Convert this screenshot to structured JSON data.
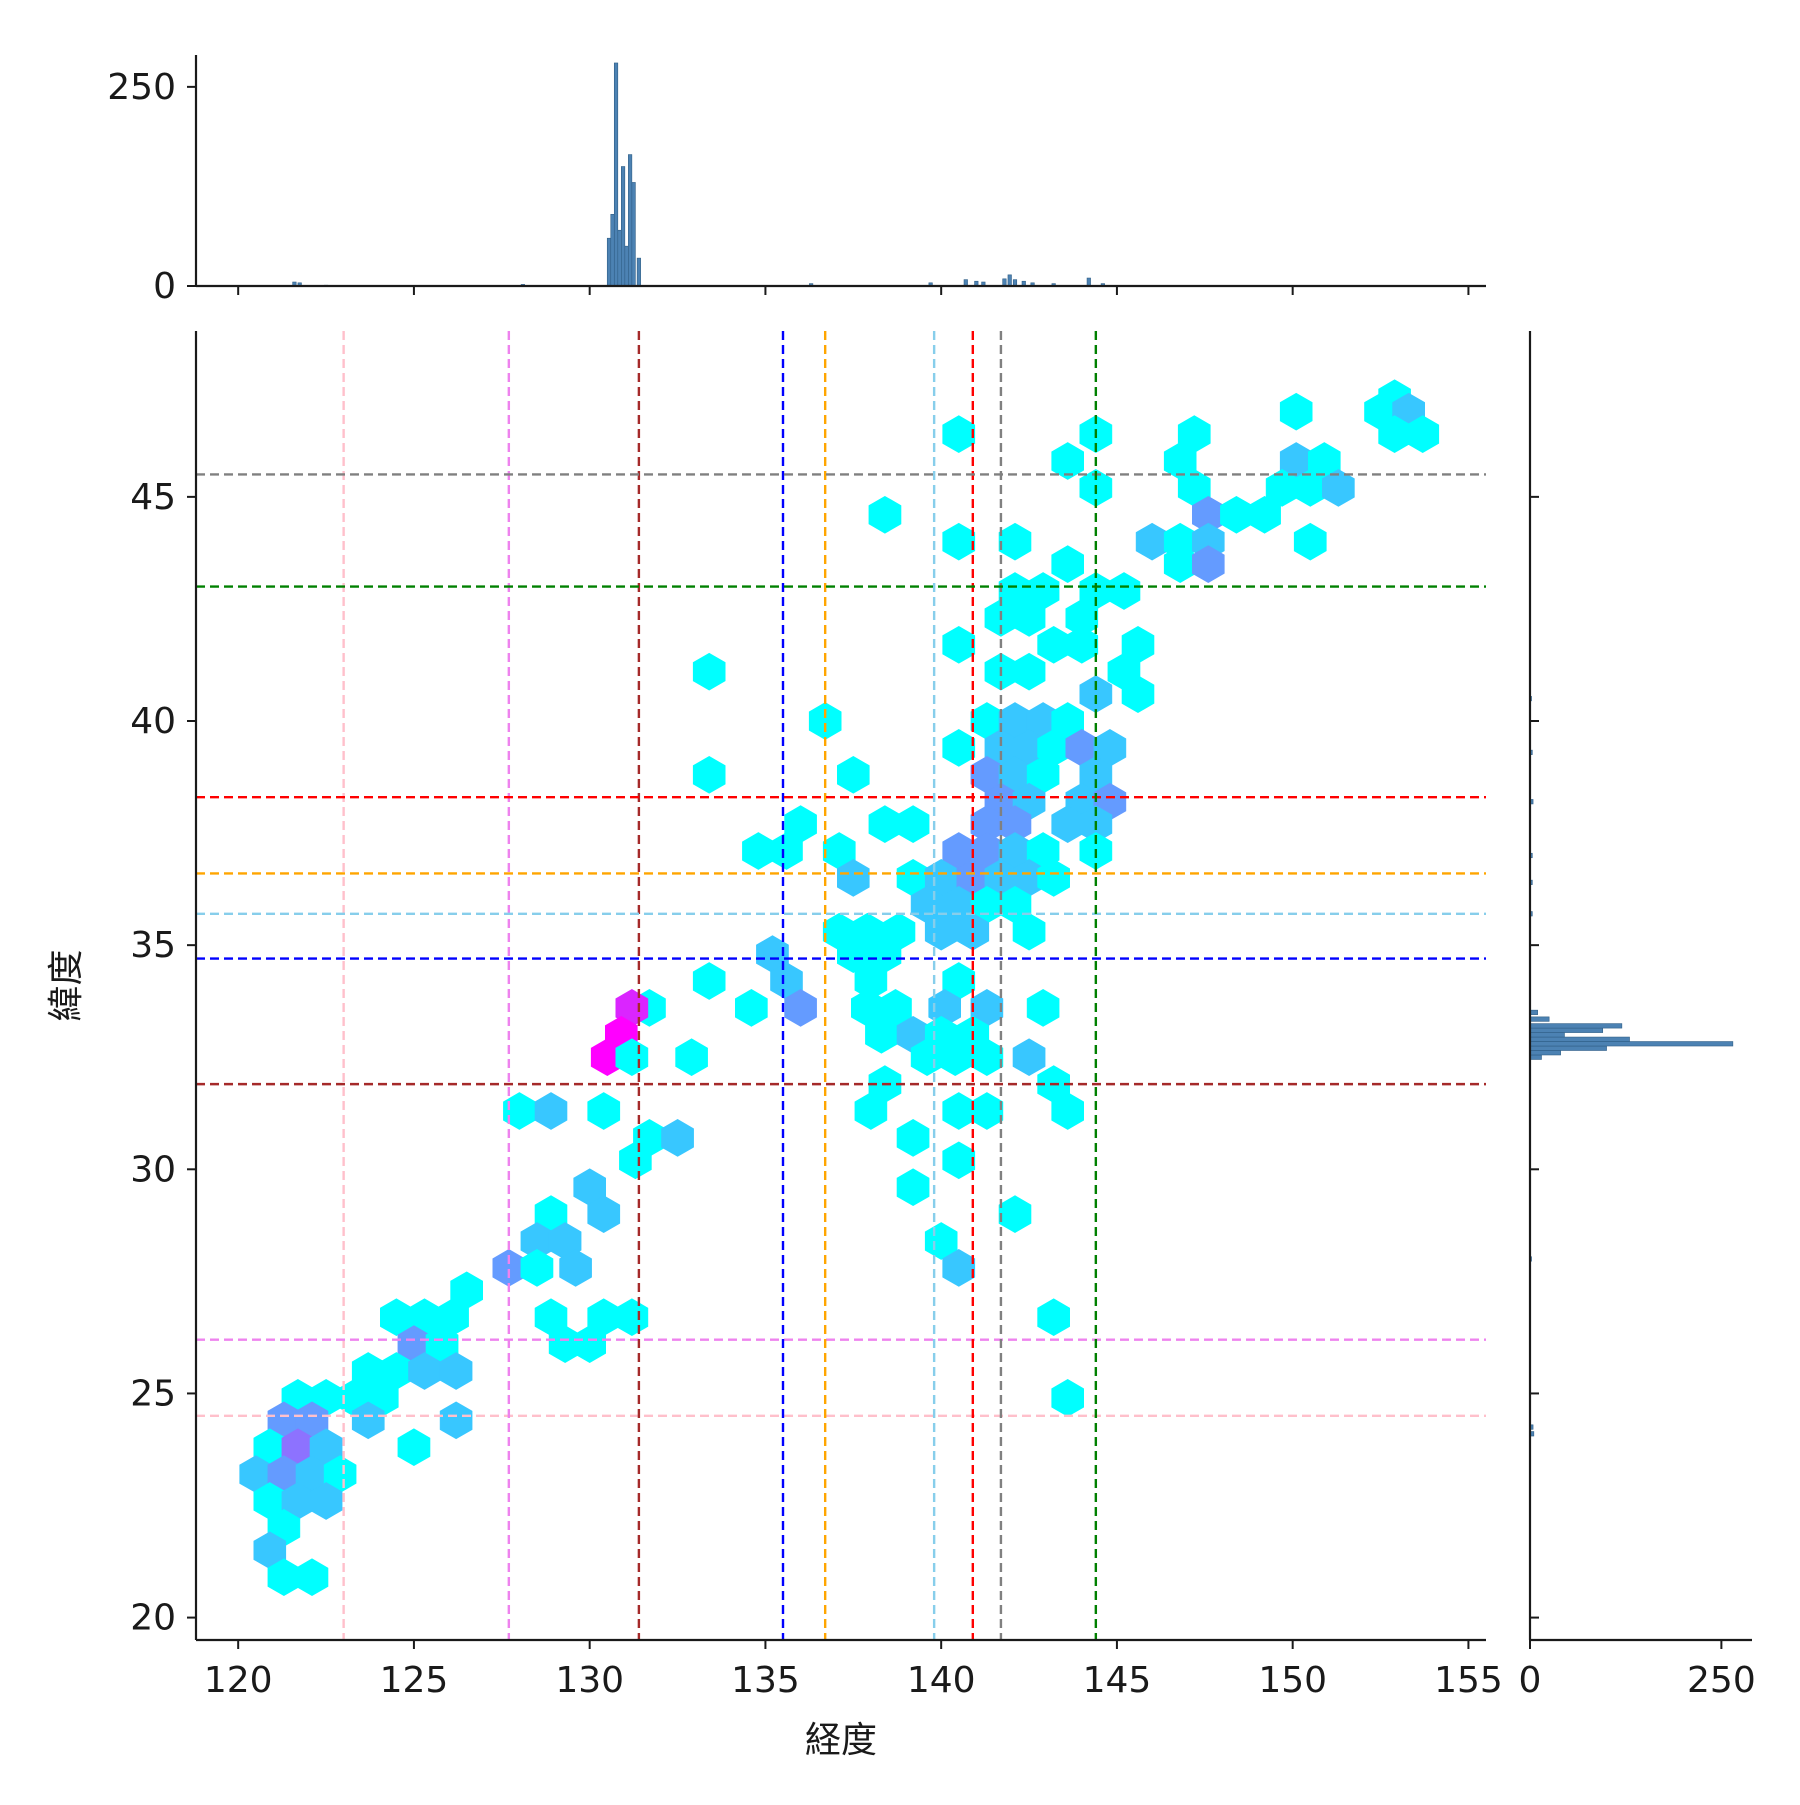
{
  "chart_data": {
    "type": "hexbin",
    "xlabel": "経度",
    "ylabel": "緯度",
    "xlim": [
      118.8,
      155.5
    ],
    "ylim": [
      19.5,
      48.7
    ],
    "x_ticks": [
      120,
      125,
      130,
      135,
      140,
      145,
      150,
      155
    ],
    "y_ticks": [
      20,
      25,
      30,
      35,
      40,
      45
    ],
    "marginal_x": {
      "type": "histogram",
      "yticks": [
        0,
        250
      ],
      "ymax": 290,
      "bars": [
        {
          "x": 121.6,
          "count": 5
        },
        {
          "x": 121.75,
          "count": 4
        },
        {
          "x": 122.5,
          "count": 1
        },
        {
          "x": 128.1,
          "count": 2
        },
        {
          "x": 130.55,
          "count": 60
        },
        {
          "x": 130.65,
          "count": 90
        },
        {
          "x": 130.75,
          "count": 280
        },
        {
          "x": 130.85,
          "count": 70
        },
        {
          "x": 130.95,
          "count": 150
        },
        {
          "x": 131.05,
          "count": 50
        },
        {
          "x": 131.15,
          "count": 165
        },
        {
          "x": 131.25,
          "count": 130
        },
        {
          "x": 131.4,
          "count": 35
        },
        {
          "x": 136.3,
          "count": 3
        },
        {
          "x": 139.7,
          "count": 4
        },
        {
          "x": 140.7,
          "count": 8
        },
        {
          "x": 141.0,
          "count": 6
        },
        {
          "x": 141.2,
          "count": 5
        },
        {
          "x": 141.8,
          "count": 9
        },
        {
          "x": 141.95,
          "count": 14
        },
        {
          "x": 142.1,
          "count": 8
        },
        {
          "x": 142.35,
          "count": 6
        },
        {
          "x": 142.6,
          "count": 4
        },
        {
          "x": 143.2,
          "count": 3
        },
        {
          "x": 144.2,
          "count": 10
        },
        {
          "x": 144.6,
          "count": 3
        }
      ]
    },
    "marginal_y": {
      "type": "histogram",
      "xticks": [
        0,
        250
      ],
      "xmax": 290,
      "bars": [
        {
          "y": 24.1,
          "count": 5
        },
        {
          "y": 24.25,
          "count": 4
        },
        {
          "y": 28.0,
          "count": 2
        },
        {
          "y": 32.5,
          "count": 15
        },
        {
          "y": 32.6,
          "count": 40
        },
        {
          "y": 32.7,
          "count": 100
        },
        {
          "y": 32.8,
          "count": 265
        },
        {
          "y": 32.9,
          "count": 130
        },
        {
          "y": 33.0,
          "count": 45
        },
        {
          "y": 33.1,
          "count": 95
        },
        {
          "y": 33.2,
          "count": 120
        },
        {
          "y": 33.35,
          "count": 25
        },
        {
          "y": 33.5,
          "count": 10
        },
        {
          "y": 35.7,
          "count": 3
        },
        {
          "y": 36.4,
          "count": 3
        },
        {
          "y": 37.0,
          "count": 3
        },
        {
          "y": 38.2,
          "count": 4
        },
        {
          "y": 39.3,
          "count": 3
        },
        {
          "y": 40.5,
          "count": 2
        }
      ]
    },
    "reference_lines": [
      {
        "color": "pink",
        "x": 123.0,
        "y": 24.5
      },
      {
        "color": "violet",
        "x": 127.7,
        "y": 26.2
      },
      {
        "color": "brown",
        "x": 131.4,
        "y": 31.9
      },
      {
        "color": "blue",
        "x": 135.5,
        "y": 34.7
      },
      {
        "color": "orange",
        "x": 136.7,
        "y": 36.6
      },
      {
        "color": "skyblue",
        "x": 139.8,
        "y": 35.7
      },
      {
        "color": "red",
        "x": 140.9,
        "y": 38.3
      },
      {
        "color": "grey",
        "x": 141.7,
        "y": 45.5
      },
      {
        "color": "green",
        "x": 144.4,
        "y": 43.0
      }
    ],
    "hexbins": [
      {
        "x": 152.9,
        "y": 47.2,
        "c": 1
      },
      {
        "x": 152.5,
        "y": 46.9,
        "c": 1
      },
      {
        "x": 153.3,
        "y": 46.9,
        "c": 2
      },
      {
        "x": 153.7,
        "y": 46.4,
        "c": 1
      },
      {
        "x": 152.9,
        "y": 46.4,
        "c": 1
      },
      {
        "x": 150.1,
        "y": 46.9,
        "c": 1
      },
      {
        "x": 140.5,
        "y": 46.4,
        "c": 1
      },
      {
        "x": 144.4,
        "y": 46.4,
        "c": 1
      },
      {
        "x": 147.2,
        "y": 46.4,
        "c": 1
      },
      {
        "x": 143.6,
        "y": 45.8,
        "c": 1
      },
      {
        "x": 146.8,
        "y": 45.8,
        "c": 1
      },
      {
        "x": 150.1,
        "y": 45.8,
        "c": 2
      },
      {
        "x": 150.9,
        "y": 45.8,
        "c": 1
      },
      {
        "x": 144.4,
        "y": 45.2,
        "c": 1
      },
      {
        "x": 147.2,
        "y": 45.2,
        "c": 1
      },
      {
        "x": 149.7,
        "y": 45.2,
        "c": 1
      },
      {
        "x": 150.5,
        "y": 45.2,
        "c": 1
      },
      {
        "x": 151.3,
        "y": 45.2,
        "c": 2
      },
      {
        "x": 138.4,
        "y": 44.6,
        "c": 1
      },
      {
        "x": 147.6,
        "y": 44.6,
        "c": 3
      },
      {
        "x": 148.4,
        "y": 44.6,
        "c": 1
      },
      {
        "x": 149.2,
        "y": 44.6,
        "c": 1
      },
      {
        "x": 140.5,
        "y": 44.0,
        "c": 1
      },
      {
        "x": 142.1,
        "y": 44.0,
        "c": 1
      },
      {
        "x": 146.0,
        "y": 44.0,
        "c": 2
      },
      {
        "x": 146.8,
        "y": 44.0,
        "c": 1
      },
      {
        "x": 147.6,
        "y": 44.0,
        "c": 2
      },
      {
        "x": 150.5,
        "y": 44.0,
        "c": 1
      },
      {
        "x": 143.6,
        "y": 43.5,
        "c": 1
      },
      {
        "x": 146.8,
        "y": 43.5,
        "c": 1
      },
      {
        "x": 147.6,
        "y": 43.5,
        "c": 3
      },
      {
        "x": 142.1,
        "y": 42.9,
        "c": 1
      },
      {
        "x": 142.9,
        "y": 42.9,
        "c": 1
      },
      {
        "x": 144.4,
        "y": 42.9,
        "c": 1
      },
      {
        "x": 145.2,
        "y": 42.9,
        "c": 1
      },
      {
        "x": 142.5,
        "y": 42.3,
        "c": 1
      },
      {
        "x": 144.0,
        "y": 42.3,
        "c": 1
      },
      {
        "x": 141.7,
        "y": 42.3,
        "c": 1
      },
      {
        "x": 140.5,
        "y": 41.7,
        "c": 1
      },
      {
        "x": 143.2,
        "y": 41.7,
        "c": 1
      },
      {
        "x": 144.0,
        "y": 41.7,
        "c": 1
      },
      {
        "x": 145.6,
        "y": 41.7,
        "c": 1
      },
      {
        "x": 133.4,
        "y": 41.1,
        "c": 1
      },
      {
        "x": 141.7,
        "y": 41.1,
        "c": 1
      },
      {
        "x": 142.5,
        "y": 41.1,
        "c": 1
      },
      {
        "x": 145.2,
        "y": 41.1,
        "c": 1
      },
      {
        "x": 144.4,
        "y": 40.6,
        "c": 2
      },
      {
        "x": 145.6,
        "y": 40.6,
        "c": 1
      },
      {
        "x": 136.7,
        "y": 40.0,
        "c": 1
      },
      {
        "x": 141.3,
        "y": 40.0,
        "c": 1
      },
      {
        "x": 142.1,
        "y": 40.0,
        "c": 2
      },
      {
        "x": 142.9,
        "y": 40.0,
        "c": 2
      },
      {
        "x": 143.6,
        "y": 40.0,
        "c": 1
      },
      {
        "x": 140.5,
        "y": 39.4,
        "c": 1
      },
      {
        "x": 141.7,
        "y": 39.4,
        "c": 2
      },
      {
        "x": 142.5,
        "y": 39.4,
        "c": 2
      },
      {
        "x": 143.2,
        "y": 39.4,
        "c": 1
      },
      {
        "x": 144.0,
        "y": 39.4,
        "c": 3
      },
      {
        "x": 144.8,
        "y": 39.4,
        "c": 2
      },
      {
        "x": 133.4,
        "y": 38.8,
        "c": 1
      },
      {
        "x": 137.5,
        "y": 38.8,
        "c": 1
      },
      {
        "x": 141.3,
        "y": 38.8,
        "c": 3
      },
      {
        "x": 142.1,
        "y": 38.8,
        "c": 2
      },
      {
        "x": 142.9,
        "y": 38.8,
        "c": 1
      },
      {
        "x": 144.4,
        "y": 38.8,
        "c": 2
      },
      {
        "x": 141.7,
        "y": 38.2,
        "c": 3
      },
      {
        "x": 142.5,
        "y": 38.2,
        "c": 2
      },
      {
        "x": 144.0,
        "y": 38.2,
        "c": 2
      },
      {
        "x": 144.8,
        "y": 38.2,
        "c": 3
      },
      {
        "x": 136.0,
        "y": 37.7,
        "c": 1
      },
      {
        "x": 138.4,
        "y": 37.7,
        "c": 1
      },
      {
        "x": 139.2,
        "y": 37.7,
        "c": 1
      },
      {
        "x": 141.3,
        "y": 37.7,
        "c": 3
      },
      {
        "x": 142.1,
        "y": 37.7,
        "c": 3
      },
      {
        "x": 143.6,
        "y": 37.7,
        "c": 2
      },
      {
        "x": 144.4,
        "y": 37.7,
        "c": 2
      },
      {
        "x": 134.8,
        "y": 37.1,
        "c": 1
      },
      {
        "x": 135.6,
        "y": 37.1,
        "c": 1
      },
      {
        "x": 137.1,
        "y": 37.1,
        "c": 1
      },
      {
        "x": 140.5,
        "y": 37.1,
        "c": 3
      },
      {
        "x": 141.3,
        "y": 37.1,
        "c": 3
      },
      {
        "x": 142.1,
        "y": 37.1,
        "c": 2
      },
      {
        "x": 142.9,
        "y": 37.1,
        "c": 1
      },
      {
        "x": 144.4,
        "y": 37.1,
        "c": 1
      },
      {
        "x": 137.5,
        "y": 36.5,
        "c": 2
      },
      {
        "x": 139.2,
        "y": 36.5,
        "c": 1
      },
      {
        "x": 140.0,
        "y": 36.5,
        "c": 2
      },
      {
        "x": 140.9,
        "y": 36.5,
        "c": 3
      },
      {
        "x": 141.7,
        "y": 36.5,
        "c": 2
      },
      {
        "x": 142.5,
        "y": 36.5,
        "c": 2
      },
      {
        "x": 143.2,
        "y": 36.5,
        "c": 1
      },
      {
        "x": 139.6,
        "y": 35.9,
        "c": 2
      },
      {
        "x": 140.5,
        "y": 35.9,
        "c": 2
      },
      {
        "x": 141.3,
        "y": 35.9,
        "c": 1
      },
      {
        "x": 142.1,
        "y": 35.9,
        "c": 1
      },
      {
        "x": 137.1,
        "y": 35.3,
        "c": 1
      },
      {
        "x": 137.9,
        "y": 35.3,
        "c": 1
      },
      {
        "x": 138.8,
        "y": 35.3,
        "c": 1
      },
      {
        "x": 140.0,
        "y": 35.3,
        "c": 2
      },
      {
        "x": 140.9,
        "y": 35.3,
        "c": 2
      },
      {
        "x": 142.5,
        "y": 35.3,
        "c": 1
      },
      {
        "x": 135.2,
        "y": 34.8,
        "c": 2
      },
      {
        "x": 137.5,
        "y": 34.8,
        "c": 1
      },
      {
        "x": 138.4,
        "y": 34.8,
        "c": 1
      },
      {
        "x": 133.4,
        "y": 34.2,
        "c": 1
      },
      {
        "x": 135.6,
        "y": 34.2,
        "c": 2
      },
      {
        "x": 138.0,
        "y": 34.2,
        "c": 1
      },
      {
        "x": 140.5,
        "y": 34.2,
        "c": 1
      },
      {
        "x": 131.7,
        "y": 33.6,
        "c": 1
      },
      {
        "x": 131.2,
        "y": 33.6,
        "c": 6
      },
      {
        "x": 134.6,
        "y": 33.6,
        "c": 1
      },
      {
        "x": 136.0,
        "y": 33.6,
        "c": 3
      },
      {
        "x": 137.9,
        "y": 33.6,
        "c": 1
      },
      {
        "x": 138.7,
        "y": 33.6,
        "c": 1
      },
      {
        "x": 140.1,
        "y": 33.6,
        "c": 2
      },
      {
        "x": 141.3,
        "y": 33.6,
        "c": 2
      },
      {
        "x": 142.9,
        "y": 33.6,
        "c": 1
      },
      {
        "x": 130.9,
        "y": 33.0,
        "c": 7
      },
      {
        "x": 138.3,
        "y": 33.0,
        "c": 1
      },
      {
        "x": 139.2,
        "y": 33.0,
        "c": 2
      },
      {
        "x": 140.0,
        "y": 33.0,
        "c": 1
      },
      {
        "x": 140.9,
        "y": 33.0,
        "c": 1
      },
      {
        "x": 130.5,
        "y": 32.5,
        "c": 7
      },
      {
        "x": 131.2,
        "y": 32.5,
        "c": 1
      },
      {
        "x": 132.9,
        "y": 32.5,
        "c": 1
      },
      {
        "x": 139.6,
        "y": 32.5,
        "c": 1
      },
      {
        "x": 140.4,
        "y": 32.5,
        "c": 1
      },
      {
        "x": 141.3,
        "y": 32.5,
        "c": 1
      },
      {
        "x": 142.5,
        "y": 32.5,
        "c": 2
      },
      {
        "x": 138.4,
        "y": 31.9,
        "c": 1
      },
      {
        "x": 143.2,
        "y": 31.9,
        "c": 1
      },
      {
        "x": 128.0,
        "y": 31.3,
        "c": 1
      },
      {
        "x": 128.9,
        "y": 31.3,
        "c": 2
      },
      {
        "x": 130.4,
        "y": 31.3,
        "c": 1
      },
      {
        "x": 138.0,
        "y": 31.3,
        "c": 1
      },
      {
        "x": 140.5,
        "y": 31.3,
        "c": 1
      },
      {
        "x": 141.3,
        "y": 31.3,
        "c": 1
      },
      {
        "x": 143.6,
        "y": 31.3,
        "c": 1
      },
      {
        "x": 131.7,
        "y": 30.7,
        "c": 1
      },
      {
        "x": 132.5,
        "y": 30.7,
        "c": 2
      },
      {
        "x": 139.2,
        "y": 30.7,
        "c": 1
      },
      {
        "x": 131.3,
        "y": 30.2,
        "c": 1
      },
      {
        "x": 140.5,
        "y": 30.2,
        "c": 1
      },
      {
        "x": 130.0,
        "y": 29.6,
        "c": 2
      },
      {
        "x": 139.2,
        "y": 29.6,
        "c": 1
      },
      {
        "x": 128.9,
        "y": 29.0,
        "c": 1
      },
      {
        "x": 130.4,
        "y": 29.0,
        "c": 2
      },
      {
        "x": 142.1,
        "y": 29.0,
        "c": 1
      },
      {
        "x": 128.5,
        "y": 28.4,
        "c": 2
      },
      {
        "x": 129.3,
        "y": 28.4,
        "c": 2
      },
      {
        "x": 140.0,
        "y": 28.4,
        "c": 1
      },
      {
        "x": 127.7,
        "y": 27.8,
        "c": 3
      },
      {
        "x": 128.5,
        "y": 27.8,
        "c": 1
      },
      {
        "x": 129.6,
        "y": 27.8,
        "c": 2
      },
      {
        "x": 140.5,
        "y": 27.8,
        "c": 2
      },
      {
        "x": 126.5,
        "y": 27.3,
        "c": 1
      },
      {
        "x": 124.5,
        "y": 26.7,
        "c": 1
      },
      {
        "x": 125.3,
        "y": 26.7,
        "c": 1
      },
      {
        "x": 126.1,
        "y": 26.7,
        "c": 1
      },
      {
        "x": 128.9,
        "y": 26.7,
        "c": 1
      },
      {
        "x": 130.4,
        "y": 26.7,
        "c": 1
      },
      {
        "x": 131.2,
        "y": 26.7,
        "c": 1
      },
      {
        "x": 143.2,
        "y": 26.7,
        "c": 1
      },
      {
        "x": 125.0,
        "y": 26.1,
        "c": 3
      },
      {
        "x": 125.8,
        "y": 26.1,
        "c": 1
      },
      {
        "x": 129.3,
        "y": 26.1,
        "c": 1
      },
      {
        "x": 130.0,
        "y": 26.1,
        "c": 1
      },
      {
        "x": 123.7,
        "y": 25.5,
        "c": 1
      },
      {
        "x": 124.5,
        "y": 25.5,
        "c": 1
      },
      {
        "x": 125.3,
        "y": 25.5,
        "c": 2
      },
      {
        "x": 126.2,
        "y": 25.5,
        "c": 2
      },
      {
        "x": 121.7,
        "y": 24.9,
        "c": 1
      },
      {
        "x": 122.5,
        "y": 24.9,
        "c": 1
      },
      {
        "x": 123.3,
        "y": 24.9,
        "c": 1
      },
      {
        "x": 124.1,
        "y": 24.9,
        "c": 1
      },
      {
        "x": 143.6,
        "y": 24.9,
        "c": 1
      },
      {
        "x": 121.3,
        "y": 24.4,
        "c": 3
      },
      {
        "x": 122.1,
        "y": 24.4,
        "c": 3
      },
      {
        "x": 123.7,
        "y": 24.4,
        "c": 2
      },
      {
        "x": 126.2,
        "y": 24.4,
        "c": 2
      },
      {
        "x": 120.9,
        "y": 23.8,
        "c": 1
      },
      {
        "x": 121.7,
        "y": 23.8,
        "c": 4
      },
      {
        "x": 122.5,
        "y": 23.8,
        "c": 2
      },
      {
        "x": 125.0,
        "y": 23.8,
        "c": 1
      },
      {
        "x": 120.5,
        "y": 23.2,
        "c": 2
      },
      {
        "x": 121.3,
        "y": 23.2,
        "c": 3
      },
      {
        "x": 122.1,
        "y": 23.2,
        "c": 2
      },
      {
        "x": 122.9,
        "y": 23.2,
        "c": 1
      },
      {
        "x": 120.9,
        "y": 22.6,
        "c": 1
      },
      {
        "x": 121.7,
        "y": 22.6,
        "c": 2
      },
      {
        "x": 122.5,
        "y": 22.6,
        "c": 2
      },
      {
        "x": 121.3,
        "y": 22.0,
        "c": 1
      },
      {
        "x": 120.9,
        "y": 21.5,
        "c": 2
      },
      {
        "x": 121.3,
        "y": 20.9,
        "c": 1
      },
      {
        "x": 122.1,
        "y": 20.9,
        "c": 1
      }
    ]
  }
}
